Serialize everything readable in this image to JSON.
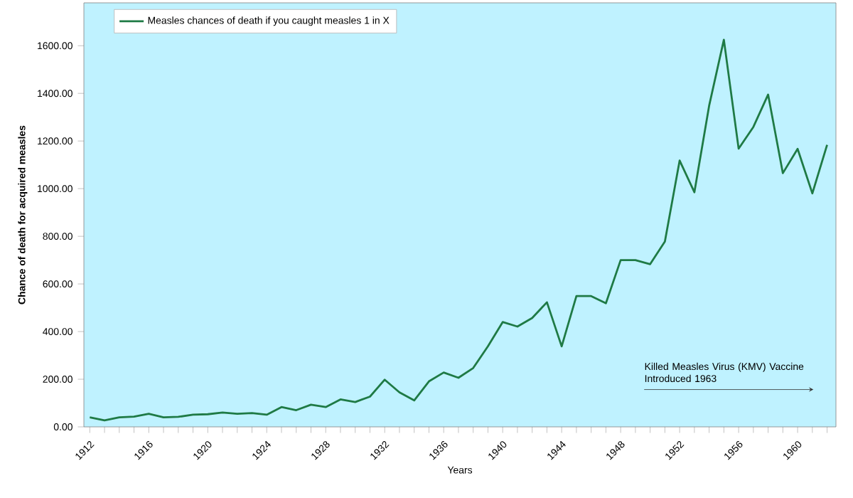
{
  "chart_data": {
    "type": "line",
    "xlabel": "Years",
    "ylabel": "Chance of death for acquired measles",
    "x": [
      1912,
      1913,
      1914,
      1915,
      1916,
      1917,
      1918,
      1919,
      1920,
      1921,
      1922,
      1923,
      1924,
      1925,
      1926,
      1927,
      1928,
      1929,
      1930,
      1931,
      1932,
      1933,
      1934,
      1935,
      1936,
      1937,
      1938,
      1939,
      1940,
      1941,
      1942,
      1943,
      1944,
      1945,
      1946,
      1947,
      1948,
      1949,
      1950,
      1951,
      1952,
      1953,
      1954,
      1955,
      1956,
      1957,
      1958,
      1959,
      1960,
      1961,
      1962
    ],
    "series": [
      {
        "name": "Measles chances of death if you caught measles 1 in X",
        "color": "#1f7a45",
        "values": [
          40,
          27,
          40,
          43,
          55,
          40,
          42,
          51,
          53,
          60,
          55,
          58,
          51,
          83,
          70,
          93,
          83,
          115,
          104,
          127,
          198,
          145,
          111,
          191,
          228,
          206,
          247,
          338,
          440,
          421,
          457,
          523,
          338,
          549,
          549,
          519,
          700,
          700,
          683,
          778,
          1118,
          985,
          1348,
          1625,
          1168,
          1259,
          1395,
          1065,
          1167,
          980,
          1184
        ]
      }
    ],
    "xlim": [
      1911.6,
      1962.6
    ],
    "xticks": [
      {
        "value": 1912,
        "label": "1912"
      },
      {
        "value": 1913,
        "label": null
      },
      {
        "value": 1914,
        "label": null
      },
      {
        "value": 1915,
        "label": null
      },
      {
        "value": 1916,
        "label": "1916"
      },
      {
        "value": 1917,
        "label": null
      },
      {
        "value": 1918,
        "label": null
      },
      {
        "value": 1919,
        "label": null
      },
      {
        "value": 1920,
        "label": "1920"
      },
      {
        "value": 1921,
        "label": null
      },
      {
        "value": 1922,
        "label": null
      },
      {
        "value": 1923,
        "label": null
      },
      {
        "value": 1924,
        "label": "1924"
      },
      {
        "value": 1925,
        "label": null
      },
      {
        "value": 1926,
        "label": null
      },
      {
        "value": 1927,
        "label": null
      },
      {
        "value": 1928,
        "label": "1928"
      },
      {
        "value": 1929,
        "label": null
      },
      {
        "value": 1930,
        "label": null
      },
      {
        "value": 1931,
        "label": null
      },
      {
        "value": 1932,
        "label": "1932"
      },
      {
        "value": 1933,
        "label": null
      },
      {
        "value": 1934,
        "label": null
      },
      {
        "value": 1935,
        "label": null
      },
      {
        "value": 1936,
        "label": "1936"
      },
      {
        "value": 1937,
        "label": null
      },
      {
        "value": 1938,
        "label": null
      },
      {
        "value": 1939,
        "label": null
      },
      {
        "value": 1940,
        "label": "1940"
      },
      {
        "value": 1941,
        "label": null
      },
      {
        "value": 1942,
        "label": null
      },
      {
        "value": 1943,
        "label": null
      },
      {
        "value": 1944,
        "label": "1944"
      },
      {
        "value": 1945,
        "label": null
      },
      {
        "value": 1946,
        "label": null
      },
      {
        "value": 1947,
        "label": null
      },
      {
        "value": 1948,
        "label": "1948"
      },
      {
        "value": 1949,
        "label": null
      },
      {
        "value": 1950,
        "label": null
      },
      {
        "value": 1951,
        "label": null
      },
      {
        "value": 1952,
        "label": "1952"
      },
      {
        "value": 1953,
        "label": null
      },
      {
        "value": 1954,
        "label": null
      },
      {
        "value": 1955,
        "label": null
      },
      {
        "value": 1956,
        "label": "1956"
      },
      {
        "value": 1957,
        "label": null
      },
      {
        "value": 1958,
        "label": null
      },
      {
        "value": 1959,
        "label": null
      },
      {
        "value": 1960,
        "label": "1960"
      },
      {
        "value": 1961,
        "label": null
      },
      {
        "value": 1962,
        "label": null
      }
    ],
    "ylim": [
      0,
      1780
    ],
    "yticks": [
      {
        "value": 0,
        "label": "0.00"
      },
      {
        "value": 200,
        "label": "200.00"
      },
      {
        "value": 400,
        "label": "400.00"
      },
      {
        "value": 600,
        "label": "600.00"
      },
      {
        "value": 800,
        "label": "800.00"
      },
      {
        "value": 1000,
        "label": "1000.00"
      },
      {
        "value": 1200,
        "label": "1200.00"
      },
      {
        "value": 1400,
        "label": "1400.00"
      },
      {
        "value": 1600,
        "label": "1600.00"
      }
    ],
    "annotations": [
      "Killed Measles Virus (KMV) Vaccine Introduced 1963"
    ],
    "legend": "top left",
    "grid": false,
    "marker": "none",
    "line_style": "solid"
  }
}
